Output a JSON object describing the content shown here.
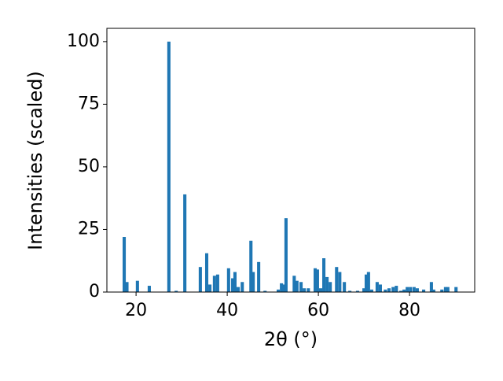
{
  "chart_data": {
    "type": "bar",
    "x_label": "2θ (°)",
    "y_label": "Intensities (scaled)",
    "color": "#1f77b4",
    "bar_width": 0.7,
    "x": [
      17.4,
      18.0,
      20.3,
      22.9,
      27.2,
      28.8,
      30.7,
      34.1,
      35.5,
      36.2,
      37.2,
      37.9,
      40.3,
      41.2,
      41.7,
      42.4,
      43.3,
      45.2,
      45.7,
      46.9,
      48.3,
      51.2,
      51.9,
      52.4,
      52.9,
      54.7,
      55.3,
      56.2,
      56.9,
      57.8,
      59.3,
      59.8,
      60.5,
      61.2,
      61.9,
      62.6,
      64.0,
      64.7,
      65.7,
      66.9,
      68.6,
      70.0,
      70.5,
      71.0,
      71.7,
      72.9,
      73.6,
      74.7,
      75.5,
      76.4,
      77.1,
      78.1,
      78.8,
      79.5,
      80.2,
      81.0,
      81.7,
      83.1,
      84.8,
      85.3,
      87.1,
      87.9,
      88.4,
      90.2
    ],
    "values": [
      22,
      4,
      4.5,
      2.5,
      100,
      0.5,
      39,
      10,
      15.5,
      3,
      6.5,
      7,
      9.5,
      5.5,
      8,
      2,
      4,
      20.5,
      8,
      12,
      0.5,
      1,
      3.5,
      3,
      29.5,
      6.5,
      4.5,
      4,
      1.5,
      1.5,
      9.5,
      9,
      1.5,
      13.5,
      6,
      4,
      10,
      8,
      4,
      0.5,
      0.5,
      1.5,
      7,
      8,
      1,
      4,
      3,
      1,
      1.5,
      2,
      2.5,
      0.5,
      1,
      2,
      2,
      2,
      1.5,
      1,
      4,
      1,
      1,
      2,
      2,
      2
    ],
    "xlim": [
      13.6,
      94.3
    ],
    "ylim": [
      0,
      105.3
    ],
    "xticks": [
      20,
      40,
      60,
      80
    ],
    "yticks": [
      0,
      25,
      50,
      75,
      100
    ]
  }
}
